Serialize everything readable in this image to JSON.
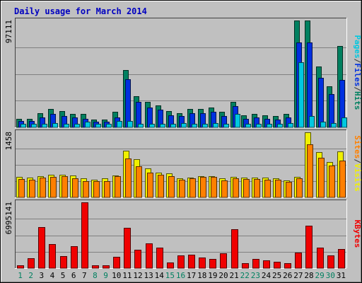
{
  "chart_data": {
    "type": "bar",
    "title": "Daily usage for March 2014",
    "categories": [
      "1",
      "2",
      "3",
      "4",
      "5",
      "6",
      "7",
      "8",
      "9",
      "10",
      "11",
      "12",
      "13",
      "14",
      "15",
      "16",
      "17",
      "18",
      "19",
      "20",
      "21",
      "22",
      "23",
      "24",
      "25",
      "26",
      "27",
      "28",
      "29",
      "30",
      "31"
    ],
    "weekend_days": [
      "1",
      "2",
      "8",
      "9",
      "15",
      "16",
      "22",
      "23",
      "29",
      "30"
    ],
    "panels": [
      {
        "name": "hits-files-pages",
        "ymax_label": "97111",
        "ymax": 97111,
        "legend": [
          "Pages",
          "/",
          "Files",
          "/",
          "Hits"
        ],
        "legend_colors": [
          "#00c8e0",
          "#333333",
          "#0030e0",
          "#333333",
          "#008060"
        ],
        "series": [
          {
            "name": "Hits",
            "color": "#008060",
            "values": [
              8000,
              8000,
              13000,
              17000,
              15000,
              12000,
              12000,
              7000,
              7000,
              14000,
              52000,
              28000,
              23000,
              20000,
              15000,
              13000,
              17000,
              17000,
              18000,
              14000,
              23000,
              11000,
              12000,
              11000,
              10000,
              12000,
              97111,
              97111,
              55000,
              37000,
              74000
            ]
          },
          {
            "name": "Files",
            "color": "#0030e0",
            "values": [
              6000,
              6000,
              9000,
              12000,
              10000,
              9000,
              8000,
              5000,
              5000,
              9000,
              44000,
              23000,
              18000,
              16000,
              11000,
              10000,
              13000,
              13000,
              14000,
              10000,
              19000,
              8000,
              9000,
              8000,
              7000,
              9000,
              77000,
              77000,
              45000,
              30000,
              43000
            ]
          },
          {
            "name": "Pages",
            "color": "#00c8e0",
            "values": [
              3000,
              3000,
              3000,
              4000,
              3000,
              3000,
              5000,
              3000,
              3000,
              6000,
              6000,
              3000,
              3000,
              3000,
              3000,
              4000,
              3000,
              3000,
              4000,
              3000,
              12000,
              3000,
              3000,
              3000,
              3000,
              4000,
              59000,
              10000,
              5000,
              4000,
              9000
            ]
          }
        ]
      },
      {
        "name": "visits-sites",
        "ymax_label": "1458",
        "ymax": 1458,
        "legend": [
          "Sites",
          "/",
          "Visits"
        ],
        "legend_colors": [
          "#ff8000",
          "#333333",
          "#f0f000"
        ],
        "series": [
          {
            "name": "Visits",
            "color": "#f0f000",
            "values": [
              460,
              440,
              480,
              500,
              510,
              490,
              430,
              400,
              420,
              490,
              1040,
              860,
              650,
              560,
              540,
              430,
              440,
              470,
              480,
              420,
              460,
              440,
              440,
              440,
              430,
              380,
              460,
              1458,
              1020,
              790,
              1030
            ]
          },
          {
            "name": "Sites",
            "color": "#ff8000",
            "values": [
              410,
              400,
              440,
              460,
              470,
              420,
              360,
              370,
              370,
              470,
              870,
              690,
              560,
              500,
              470,
              400,
              420,
              460,
              460,
              380,
              420,
              410,
              410,
              400,
              390,
              350,
              420,
              1190,
              880,
              710,
              820
            ]
          }
        ]
      },
      {
        "name": "kbytes",
        "ymax_label": "6995141",
        "ymax": 6995141,
        "legend": [
          "KBytes"
        ],
        "legend_colors": [
          "#f00000"
        ],
        "series": [
          {
            "name": "KBytes",
            "color": "#f00000",
            "values": [
              300000,
              1050000,
              4400000,
              2550000,
              1250000,
              2300000,
              6995141,
              300000,
              300000,
              1200000,
              4250000,
              1950000,
              2650000,
              2150000,
              600000,
              1350000,
              1400000,
              1150000,
              1000000,
              1550000,
              4100000,
              500000,
              950000,
              800000,
              650000,
              500000,
              1650000,
              4500000,
              2200000,
              1350000,
              2000000
            ]
          }
        ]
      }
    ]
  }
}
